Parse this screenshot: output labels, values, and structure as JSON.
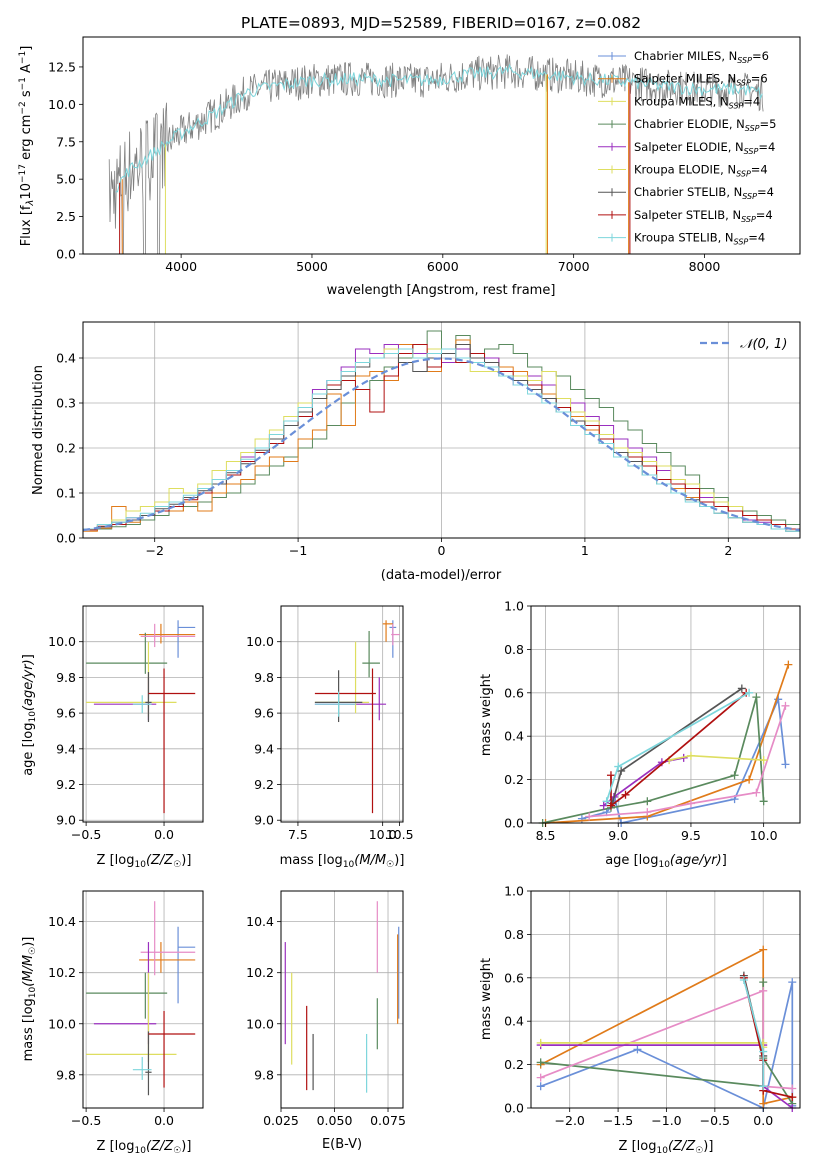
{
  "figure_title": "PLATE=0893, MJD=52589, FIBERID=0167, z=0.082",
  "colors": {
    "blue": "#6a8fd8",
    "orange": "#e07b1a",
    "green": "#5a8a5e",
    "pink": "#e68cc6",
    "purple": "#9a2fbf",
    "yellow": "#dede60",
    "grey": "#555555",
    "red": "#b01010",
    "cyan": "#7dd6dc",
    "spectrum": "#808080"
  },
  "legend_labels": [
    "Chabrier MILES, N_SSP=6",
    "Salpeter MILES, N_SSP=6",
    "Kroupa MILES, N_SSP=4",
    "Chabrier ELODIE, N_SSP=5",
    "Salpeter ELODIE, N_SSP=4",
    "Kroupa ELODIE, N_SSP=4",
    "Chabrier STELIB, N_SSP=4",
    "Salpeter STELIB, N_SSP=4",
    "Kroupa STELIB, N_SSP=4"
  ],
  "chart_data": [
    {
      "id": "spectrum",
      "type": "line",
      "title": "PLATE=0893, MJD=52589, FIBERID=0167, z=0.082",
      "xlabel": "wavelength [Angstrom, rest frame]",
      "ylabel": "Flux [f_λ10^-17 erg cm^-2 s^-1 A^-1]",
      "xlim": [
        3250,
        8730
      ],
      "ylim": [
        0,
        14.5
      ],
      "xticks": [
        4000,
        5000,
        6000,
        7000,
        8000
      ],
      "yticks": [
        0.0,
        2.5,
        5.0,
        7.5,
        10.0,
        12.5
      ],
      "ytick_labels": [
        "0.0",
        "2.5",
        "5.0",
        "7.5",
        "10.0",
        "12.5"
      ],
      "continuum": [
        [
          3450,
          3.8
        ],
        [
          3600,
          5.6
        ],
        [
          3800,
          6.8
        ],
        [
          3950,
          7.8
        ],
        [
          4100,
          8.6
        ],
        [
          4300,
          9.6
        ],
        [
          4500,
          10.8
        ],
        [
          4700,
          11.2
        ],
        [
          5000,
          11.6
        ],
        [
          5300,
          11.7
        ],
        [
          5600,
          11.6
        ],
        [
          5900,
          11.6
        ],
        [
          6200,
          12.0
        ],
        [
          6500,
          12.2
        ],
        [
          6800,
          12.0
        ],
        [
          7100,
          11.7
        ],
        [
          7400,
          11.5
        ],
        [
          7700,
          11.2
        ],
        [
          8000,
          11.0
        ],
        [
          8300,
          11.0
        ],
        [
          8450,
          10.7
        ]
      ],
      "legend_position": "upper right",
      "series_names": [
        "Chabrier MILES, N_SSP=6",
        "Salpeter MILES, N_SSP=6",
        "Kroupa MILES, N_SSP=4",
        "Chabrier ELODIE, N_SSP=5",
        "Salpeter ELODIE, N_SSP=4",
        "Kroupa ELODIE, N_SSP=4",
        "Chabrier STELIB, N_SSP=4",
        "Salpeter STELIB, N_SSP=4",
        "Kroupa STELIB, N_SSP=4"
      ]
    },
    {
      "id": "residuals",
      "type": "histogram",
      "xlabel": "(data-model)/error",
      "ylabel": "Normed distribution",
      "xlim": [
        -2.5,
        2.5
      ],
      "ylim": [
        0,
        0.48
      ],
      "xticks": [
        -2,
        -1,
        0,
        1,
        2
      ],
      "xtick_labels": [
        "−2",
        "−1",
        "0",
        "1",
        "2"
      ],
      "yticks": [
        0.0,
        0.1,
        0.2,
        0.3,
        0.4
      ],
      "ytick_labels": [
        "0.0",
        "0.1",
        "0.2",
        "0.3",
        "0.4"
      ],
      "bin_width": 0.1,
      "legend": "𝒩(0, 1)",
      "legend_position": "upper right",
      "normal_curve": {
        "mean": 0,
        "sigma": 1
      }
    },
    {
      "id": "age_vs_Z",
      "type": "scatter",
      "xlabel": "Z [log10(Z/Z☉)]",
      "ylabel": "age  [log10(age/yr)]",
      "xlim": [
        -0.52,
        0.25
      ],
      "ylim": [
        8.99,
        10.2
      ],
      "xticks": [
        -0.5,
        0.0
      ],
      "xtick_labels": [
        "−0.5",
        "0.0"
      ],
      "yticks": [
        9.0,
        9.2,
        9.4,
        9.6,
        9.8,
        10.0
      ],
      "ytick_labels": [
        "9.0",
        "9.2",
        "9.4",
        "9.6",
        "9.8",
        "10.0"
      ]
    },
    {
      "id": "age_vs_mass",
      "type": "scatter",
      "xlabel": "mass [log10(M/M☉)]",
      "xlim": [
        7.0,
        10.6
      ],
      "ylim": [
        8.99,
        10.2
      ],
      "xticks": [
        7.5,
        10.0,
        10.5
      ],
      "xtick_labels": [
        "7.5",
        "10.0",
        "10.5"
      ],
      "yticks": [
        9.0,
        9.2,
        9.4,
        9.6,
        9.8,
        10.0
      ],
      "ytick_labels": [
        "9.0",
        "9.2",
        "9.4",
        "9.6",
        "9.8",
        "10.0"
      ]
    },
    {
      "id": "weight_vs_age",
      "type": "line",
      "xlabel": "age  [log10(age/yr)]",
      "ylabel": "mass weight",
      "xlim": [
        8.4,
        10.25
      ],
      "ylim": [
        0,
        1.0
      ],
      "xticks": [
        8.5,
        9.0,
        9.5,
        10.0
      ],
      "xtick_labels": [
        "8.5",
        "9.0",
        "9.5",
        "10.0"
      ],
      "yticks": [
        0.0,
        0.2,
        0.4,
        0.6,
        0.8,
        1.0
      ],
      "ytick_labels": [
        "0.0",
        "0.2",
        "0.4",
        "0.6",
        "0.8",
        "1.0"
      ]
    },
    {
      "id": "mass_vs_Z",
      "type": "scatter",
      "xlabel": "Z [log10(Z/Z☉)]",
      "ylabel": "mass [log10(M/M☉)]",
      "xlim": [
        -0.52,
        0.25
      ],
      "ylim": [
        9.67,
        10.52
      ],
      "xticks": [
        -0.5,
        0.0
      ],
      "xtick_labels": [
        "−0.5",
        "0.0"
      ],
      "yticks": [
        9.8,
        10.0,
        10.2,
        10.4
      ],
      "ytick_labels": [
        "9.8",
        "10.0",
        "10.2",
        "10.4"
      ]
    },
    {
      "id": "mass_vs_EBV",
      "type": "scatter",
      "xlabel": "E(B-V)",
      "xlim": [
        0.025,
        0.082
      ],
      "ylim": [
        9.67,
        10.52
      ],
      "xticks": [
        0.025,
        0.05,
        0.075
      ],
      "xtick_labels": [
        "0.025",
        "0.050",
        "0.075"
      ],
      "yticks": [
        9.8,
        10.0,
        10.2,
        10.4
      ],
      "ytick_labels": [
        "9.8",
        "10.0",
        "10.2",
        "10.4"
      ]
    },
    {
      "id": "weight_vs_Z",
      "type": "line",
      "xlabel": "Z [log10(Z/Z☉)]",
      "ylabel": "mass weight",
      "xlim": [
        -2.4,
        0.38
      ],
      "ylim": [
        0,
        1.0
      ],
      "xticks": [
        -2.0,
        -1.5,
        -1.0,
        -0.5,
        0.0
      ],
      "xtick_labels": [
        "−2.0",
        "−1.5",
        "−1.0",
        "−0.5",
        "0.0"
      ],
      "yticks": [
        0.0,
        0.2,
        0.4,
        0.6,
        0.8,
        1.0
      ],
      "ytick_labels": [
        "0.0",
        "0.2",
        "0.4",
        "0.6",
        "0.8",
        "1.0"
      ]
    }
  ],
  "fits": [
    {
      "color": "blue",
      "Z": 0.09,
      "Zerr": [
        0.09,
        0.2
      ],
      "age": 10.08,
      "ageErr": [
        9.91,
        10.12
      ],
      "mass": 10.3,
      "massErr": [
        10.08,
        10.38
      ],
      "ebv": 0.08,
      "ebvErr": [
        10.02,
        10.38
      ],
      "wAge": [
        [
          8.75,
          0.02
        ],
        [
          8.92,
          0.05
        ],
        [
          8.98,
          0.1
        ],
        [
          9.02,
          0.0
        ],
        [
          9.8,
          0.11
        ],
        [
          10.1,
          0.57
        ],
        [
          10.15,
          0.27
        ]
      ],
      "wZ": [
        [
          0.3,
          0.01
        ],
        [
          0.3,
          0.58
        ],
        [
          0.0,
          0.0
        ],
        [
          -1.3,
          0.27
        ],
        [
          -2.3,
          0.1
        ]
      ]
    },
    {
      "color": "orange",
      "Z": -0.02,
      "Zerr": [
        -0.16,
        0.2
      ],
      "age": 10.04,
      "ageErr": [
        9.99,
        10.1
      ],
      "mass": 10.25,
      "massErr": [
        10.2,
        10.32
      ],
      "ebv": 0.0795,
      "ebvErr": [
        10.0,
        10.35
      ],
      "wAge": [
        [
          8.5,
          0.0
        ],
        [
          9.2,
          0.03
        ],
        [
          9.9,
          0.2
        ],
        [
          10.17,
          0.73
        ]
      ],
      "wZ": [
        [
          -2.3,
          0.2
        ],
        [
          0.0,
          0.73
        ],
        [
          0.0,
          0.02
        ],
        [
          0.3,
          0.05
        ]
      ]
    },
    {
      "color": "green",
      "Z": -0.12,
      "Zerr": [
        -0.5,
        0.02
      ],
      "age": 9.88,
      "ageErr": [
        9.82,
        10.05
      ],
      "mass": 10.12,
      "massErr": [
        10.02,
        10.2
      ],
      "ebv": 0.07,
      "ebvErr": [
        9.9,
        10.1
      ],
      "wAge": [
        [
          8.48,
          0.0
        ],
        [
          8.95,
          0.07
        ],
        [
          9.2,
          0.1
        ],
        [
          9.8,
          0.22
        ],
        [
          9.95,
          0.58
        ],
        [
          10.0,
          0.1
        ]
      ],
      "wZ": [
        [
          -2.3,
          0.21
        ],
        [
          0.0,
          0.1
        ],
        [
          0.0,
          0.58
        ],
        [
          0.0,
          0.23
        ],
        [
          0.3,
          0.02
        ]
      ]
    },
    {
      "color": "pink",
      "Z": -0.06,
      "Zerr": [
        -0.15,
        0.2
      ],
      "age": 10.03,
      "ageErr": [
        9.97,
        10.1
      ],
      "mass": 10.28,
      "massErr": [
        10.19,
        10.48
      ],
      "ebv": 0.07,
      "ebvErr": [
        10.2,
        10.48
      ],
      "wAge": [
        [
          8.8,
          0.03
        ],
        [
          9.2,
          0.05
        ],
        [
          9.5,
          0.09
        ],
        [
          9.95,
          0.14
        ],
        [
          10.15,
          0.54
        ]
      ],
      "wZ": [
        [
          -2.3,
          0.14
        ],
        [
          0.0,
          0.54
        ],
        [
          0.0,
          0.1
        ],
        [
          0.3,
          0.09
        ]
      ]
    },
    {
      "color": "purple",
      "Z": -0.1,
      "Zerr": [
        -0.45,
        -0.05
      ],
      "age": 9.65,
      "ageErr": [
        9.56,
        9.8
      ],
      "mass": 10.0,
      "massErr": [
        9.92,
        10.32
      ],
      "ebv": 0.027,
      "ebvErr": [
        9.92,
        10.32
      ],
      "wAge": [
        [
          8.9,
          0.08
        ],
        [
          8.97,
          0.12
        ],
        [
          9.3,
          0.28
        ],
        [
          9.45,
          0.3
        ]
      ],
      "wZ": [
        [
          -2.3,
          0.29
        ],
        [
          0.0,
          0.29
        ],
        [
          0.0,
          0.1
        ],
        [
          0.3,
          0.0
        ]
      ]
    },
    {
      "color": "yellow",
      "Z": -0.1,
      "Zerr": [
        -0.5,
        0.08
      ],
      "age": 9.66,
      "ageErr": [
        9.58,
        10.0
      ],
      "mass": 9.88,
      "massErr": [
        9.85,
        10.2
      ],
      "ebv": 0.03,
      "ebvErr": [
        9.84,
        10.2
      ],
      "wAge": [
        [
          9.35,
          0.29
        ],
        [
          9.5,
          0.31
        ],
        [
          10.0,
          0.29
        ]
      ],
      "wZ": [
        [
          -2.3,
          0.3
        ],
        [
          0.0,
          0.3
        ],
        [
          0.0,
          0.28
        ]
      ]
    },
    {
      "color": "grey",
      "Z": -0.1,
      "Zerr": [
        -0.12,
        -0.08
      ],
      "age": 9.66,
      "ageErr": [
        9.55,
        9.83
      ],
      "mass": 9.81,
      "massErr": [
        9.72,
        9.97
      ],
      "ebv": 0.04,
      "ebvErr": [
        9.74,
        9.96
      ],
      "wAge": [
        [
          8.96,
          0.09
        ],
        [
          9.02,
          0.24
        ],
        [
          9.85,
          0.62
        ]
      ],
      "wZ": [
        [
          -0.2,
          0.61
        ],
        [
          0.0,
          0.24
        ],
        [
          0.0,
          0.1
        ]
      ]
    },
    {
      "color": "red",
      "Z": 0.0,
      "Zerr": [
        -0.1,
        0.2
      ],
      "age": 9.71,
      "ageErr": [
        9.04,
        9.85
      ],
      "mass": 9.96,
      "massErr": [
        9.75,
        10.05
      ],
      "ebv": 0.037,
      "ebvErr": [
        9.74,
        10.07
      ],
      "wAge": [
        [
          8.95,
          0.22
        ],
        [
          8.95,
          0.08
        ],
        [
          9.05,
          0.13
        ],
        [
          9.88,
          0.6
        ]
      ],
      "wZ": [
        [
          -0.2,
          0.6
        ],
        [
          0.0,
          0.22
        ],
        [
          0.0,
          0.08
        ],
        [
          0.3,
          0.05
        ]
      ]
    },
    {
      "color": "cyan",
      "Z": -0.14,
      "Zerr": [
        -0.2,
        -0.08
      ],
      "age": 9.65,
      "ageErr": [
        9.6,
        9.7
      ],
      "mass": 9.82,
      "massErr": [
        9.78,
        9.87
      ],
      "ebv": 0.065,
      "ebvErr": [
        9.73,
        9.96
      ],
      "wAge": [
        [
          8.92,
          0.1
        ],
        [
          9.0,
          0.26
        ],
        [
          9.9,
          0.6
        ]
      ],
      "wZ": [
        [
          -0.2,
          0.59
        ],
        [
          0.0,
          0.26
        ],
        [
          0.0,
          0.1
        ]
      ]
    }
  ],
  "residual_series": [
    {
      "color": "green",
      "values": [
        0.018,
        0.02,
        0.025,
        0.03,
        0.04,
        0.05,
        0.06,
        0.07,
        0.08,
        0.09,
        0.1,
        0.12,
        0.14,
        0.16,
        0.18,
        0.2,
        0.22,
        0.25,
        0.3,
        0.33,
        0.35,
        0.38,
        0.4,
        0.43,
        0.46,
        0.39,
        0.45,
        0.4,
        0.42,
        0.43,
        0.41,
        0.38,
        0.37,
        0.36,
        0.33,
        0.31,
        0.29,
        0.26,
        0.24,
        0.21,
        0.19,
        0.16,
        0.14,
        0.11,
        0.09,
        0.07,
        0.06,
        0.05,
        0.04,
        0.03
      ]
    },
    {
      "color": "orange",
      "values": [
        0.015,
        0.022,
        0.07,
        0.035,
        0.05,
        0.07,
        0.06,
        0.08,
        0.06,
        0.1,
        0.12,
        0.13,
        0.16,
        0.18,
        0.17,
        0.22,
        0.24,
        0.32,
        0.25,
        0.36,
        0.37,
        0.35,
        0.43,
        0.4,
        0.37,
        0.42,
        0.44,
        0.41,
        0.4,
        0.38,
        0.37,
        0.34,
        0.32,
        0.29,
        0.27,
        0.24,
        0.23,
        0.19,
        0.18,
        0.16,
        0.12,
        0.11,
        0.09,
        0.07,
        0.07,
        0.06,
        0.05,
        0.04,
        0.03,
        0.02
      ]
    },
    {
      "color": "purple",
      "values": [
        0.02,
        0.025,
        0.03,
        0.045,
        0.05,
        0.06,
        0.08,
        0.09,
        0.11,
        0.13,
        0.15,
        0.18,
        0.2,
        0.23,
        0.26,
        0.28,
        0.33,
        0.35,
        0.38,
        0.42,
        0.41,
        0.43,
        0.42,
        0.41,
        0.4,
        0.39,
        0.42,
        0.41,
        0.4,
        0.36,
        0.34,
        0.36,
        0.34,
        0.31,
        0.3,
        0.27,
        0.25,
        0.22,
        0.2,
        0.18,
        0.15,
        0.13,
        0.11,
        0.09,
        0.07,
        0.06,
        0.04,
        0.035,
        0.03,
        0.02
      ]
    },
    {
      "color": "yellow",
      "values": [
        0.02,
        0.03,
        0.04,
        0.06,
        0.07,
        0.08,
        0.11,
        0.1,
        0.12,
        0.15,
        0.17,
        0.19,
        0.22,
        0.24,
        0.27,
        0.3,
        0.31,
        0.34,
        0.36,
        0.39,
        0.4,
        0.42,
        0.41,
        0.4,
        0.42,
        0.41,
        0.39,
        0.37,
        0.37,
        0.37,
        0.36,
        0.35,
        0.37,
        0.31,
        0.28,
        0.26,
        0.23,
        0.2,
        0.19,
        0.17,
        0.16,
        0.13,
        0.12,
        0.1,
        0.08,
        0.07,
        0.05,
        0.04,
        0.03,
        0.02
      ]
    },
    {
      "color": "red",
      "values": [
        0.018,
        0.026,
        0.03,
        0.04,
        0.05,
        0.06,
        0.07,
        0.085,
        0.1,
        0.12,
        0.14,
        0.17,
        0.19,
        0.21,
        0.25,
        0.27,
        0.32,
        0.34,
        0.35,
        0.33,
        0.28,
        0.36,
        0.41,
        0.43,
        0.38,
        0.41,
        0.39,
        0.41,
        0.38,
        0.37,
        0.35,
        0.34,
        0.31,
        0.29,
        0.26,
        0.25,
        0.22,
        0.19,
        0.18,
        0.16,
        0.13,
        0.12,
        0.11,
        0.08,
        0.07,
        0.06,
        0.05,
        0.04,
        0.03,
        0.02
      ]
    },
    {
      "color": "grey",
      "values": [
        0.02,
        0.025,
        0.035,
        0.04,
        0.05,
        0.065,
        0.075,
        0.09,
        0.105,
        0.12,
        0.145,
        0.165,
        0.195,
        0.22,
        0.25,
        0.28,
        0.31,
        0.33,
        0.36,
        0.38,
        0.4,
        0.41,
        0.39,
        0.37,
        0.4,
        0.41,
        0.43,
        0.4,
        0.39,
        0.36,
        0.35,
        0.33,
        0.31,
        0.28,
        0.26,
        0.23,
        0.21,
        0.19,
        0.17,
        0.14,
        0.12,
        0.1,
        0.085,
        0.07,
        0.055,
        0.045,
        0.035,
        0.03,
        0.02,
        0.015
      ]
    },
    {
      "color": "cyan",
      "values": [
        0.02,
        0.03,
        0.035,
        0.045,
        0.055,
        0.07,
        0.08,
        0.095,
        0.11,
        0.13,
        0.15,
        0.175,
        0.2,
        0.23,
        0.26,
        0.29,
        0.32,
        0.35,
        0.37,
        0.39,
        0.4,
        0.41,
        0.42,
        0.4,
        0.41,
        0.42,
        0.4,
        0.39,
        0.38,
        0.36,
        0.34,
        0.32,
        0.3,
        0.28,
        0.25,
        0.23,
        0.21,
        0.18,
        0.16,
        0.14,
        0.12,
        0.1,
        0.08,
        0.07,
        0.055,
        0.045,
        0.035,
        0.03,
        0.02,
        0.015
      ]
    }
  ]
}
